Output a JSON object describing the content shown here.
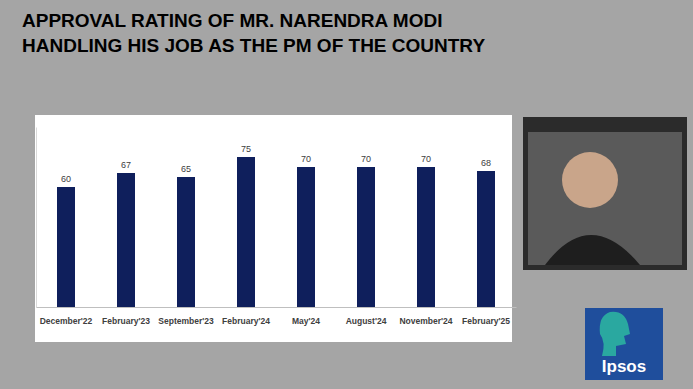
{
  "chart_data": {
    "type": "bar",
    "title": "APPROVAL RATING OF MR. NARENDRA MODI\nHANDLING HIS JOB AS THE PM OF THE COUNTRY",
    "categories": [
      "December'22",
      "February'23",
      "September'23",
      "February'24",
      "May'24",
      "August'24",
      "November'24",
      "February'25"
    ],
    "values": [
      60,
      67,
      65,
      75,
      70,
      70,
      70,
      68
    ],
    "color": "#0f1f5c",
    "ylim": [
      0,
      90
    ],
    "yticks": [],
    "grid": false,
    "data_labels": true,
    "tick_labels": "x",
    "annotations": [
      "Ipsos"
    ]
  }
}
